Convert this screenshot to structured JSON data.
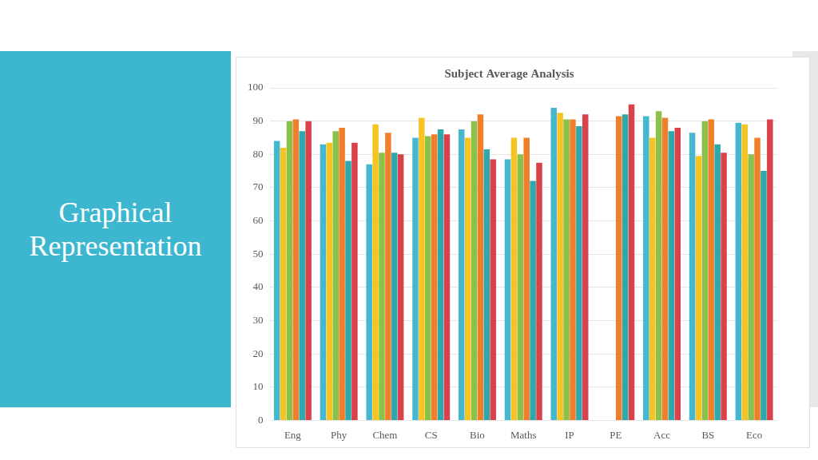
{
  "slide": {
    "heading": "Graphical Representation"
  },
  "chart_data": {
    "type": "bar",
    "title": "Subject Average Analysis",
    "categories": [
      "Eng",
      "Phy",
      "Chem",
      "CS",
      "Bio",
      "Maths",
      "IP",
      "PE",
      "Acc",
      "BS",
      "Eco"
    ],
    "series": [
      {
        "color": "#45b8cf",
        "values": [
          84,
          83,
          77,
          85,
          87.5,
          78.5,
          94,
          null,
          91.5,
          86.5,
          89.5
        ]
      },
      {
        "color": "#f5c423",
        "values": [
          82,
          83.5,
          89,
          91,
          85,
          85,
          92.5,
          null,
          85,
          79.5,
          89
        ]
      },
      {
        "color": "#8dc04a",
        "values": [
          90,
          87,
          80.5,
          85.5,
          90,
          80,
          90.5,
          null,
          93,
          90,
          80
        ]
      },
      {
        "color": "#f07f2b",
        "values": [
          90.5,
          88,
          86.5,
          86,
          92,
          85,
          90.5,
          91.5,
          91,
          90.5,
          85
        ]
      },
      {
        "color": "#2ea8ac",
        "values": [
          87,
          78,
          80.5,
          87.5,
          81.5,
          72,
          88.5,
          92,
          87,
          83,
          75
        ]
      },
      {
        "color": "#d9414b",
        "values": [
          90,
          83.5,
          80,
          86,
          78.5,
          77.5,
          92,
          95,
          88,
          80.5,
          90.5
        ]
      }
    ],
    "ylim": [
      0,
      100
    ],
    "yticks": [
      0,
      10,
      20,
      30,
      40,
      50,
      60,
      70,
      80,
      90,
      100
    ],
    "grid": true
  }
}
